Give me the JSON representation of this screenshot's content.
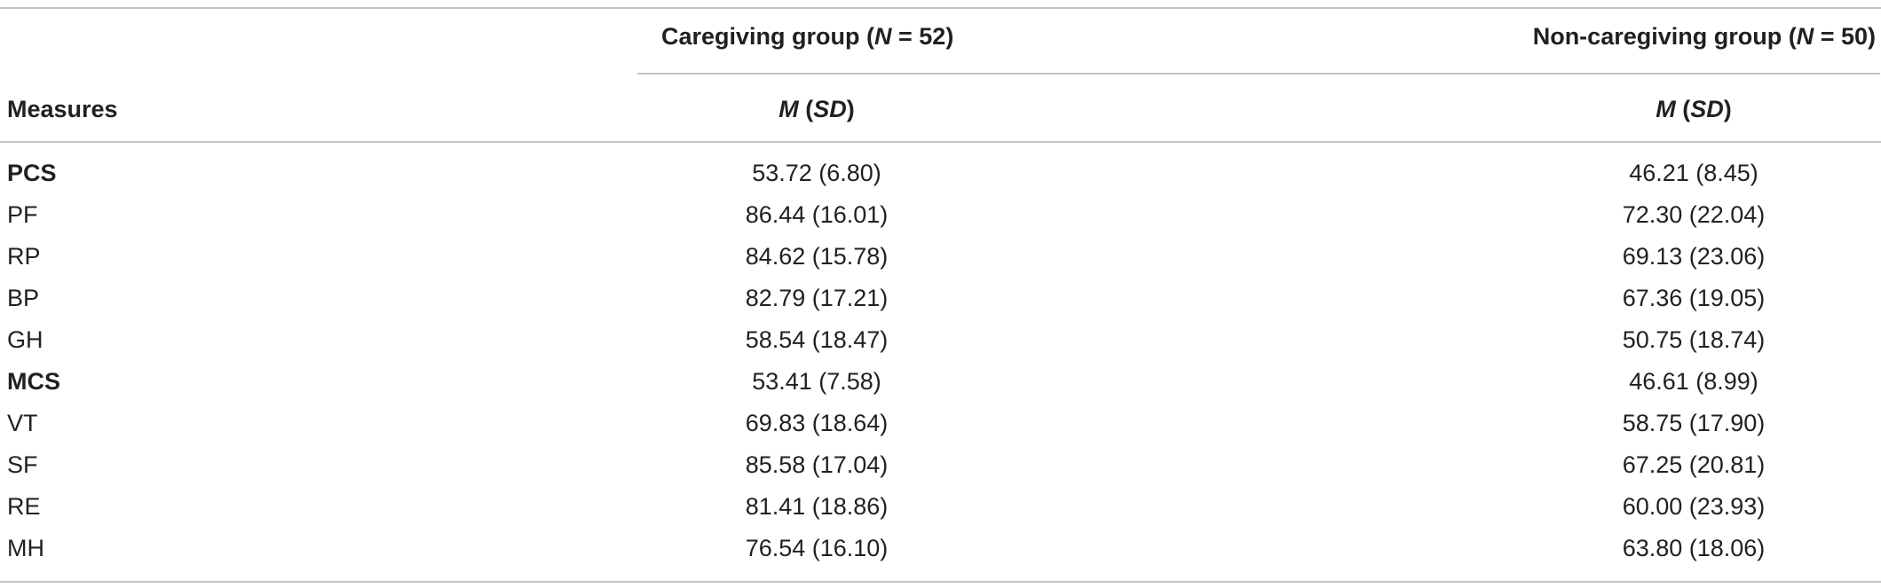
{
  "table": {
    "header": {
      "measures": "Measures",
      "group1": {
        "label": "Caregiving group (",
        "n_symbol": "N",
        "n_value": " = 52)"
      },
      "group2": {
        "label": "Non-caregiving group (",
        "n_symbol": "N",
        "n_value": " = 50)"
      },
      "stat": {
        "m": "M",
        "open": " (",
        "sd": "SD",
        "close": ")"
      }
    },
    "rows": [
      {
        "measure": "PCS",
        "caregiving": "53.72 (6.80)",
        "noncaregiving": "46.21 (8.45)",
        "bold": true
      },
      {
        "measure": "PF",
        "caregiving": "86.44 (16.01)",
        "noncaregiving": "72.30 (22.04)",
        "bold": false
      },
      {
        "measure": "RP",
        "caregiving": "84.62 (15.78)",
        "noncaregiving": "69.13 (23.06)",
        "bold": false
      },
      {
        "measure": "BP",
        "caregiving": "82.79 (17.21)",
        "noncaregiving": "67.36 (19.05)",
        "bold": false
      },
      {
        "measure": "GH",
        "caregiving": "58.54 (18.47)",
        "noncaregiving": "50.75 (18.74)",
        "bold": false
      },
      {
        "measure": "MCS",
        "caregiving": "53.41 (7.58)",
        "noncaregiving": "46.61 (8.99)",
        "bold": true
      },
      {
        "measure": "VT",
        "caregiving": "69.83 (18.64)",
        "noncaregiving": "58.75 (17.90)",
        "bold": false
      },
      {
        "measure": "SF",
        "caregiving": "85.58 (17.04)",
        "noncaregiving": "67.25 (20.81)",
        "bold": false
      },
      {
        "measure": "RE",
        "caregiving": "81.41 (18.86)",
        "noncaregiving": "60.00 (23.93)",
        "bold": false
      },
      {
        "measure": "MH",
        "caregiving": "76.54 (16.10)",
        "noncaregiving": "63.80 (18.06)",
        "bold": false
      }
    ]
  }
}
